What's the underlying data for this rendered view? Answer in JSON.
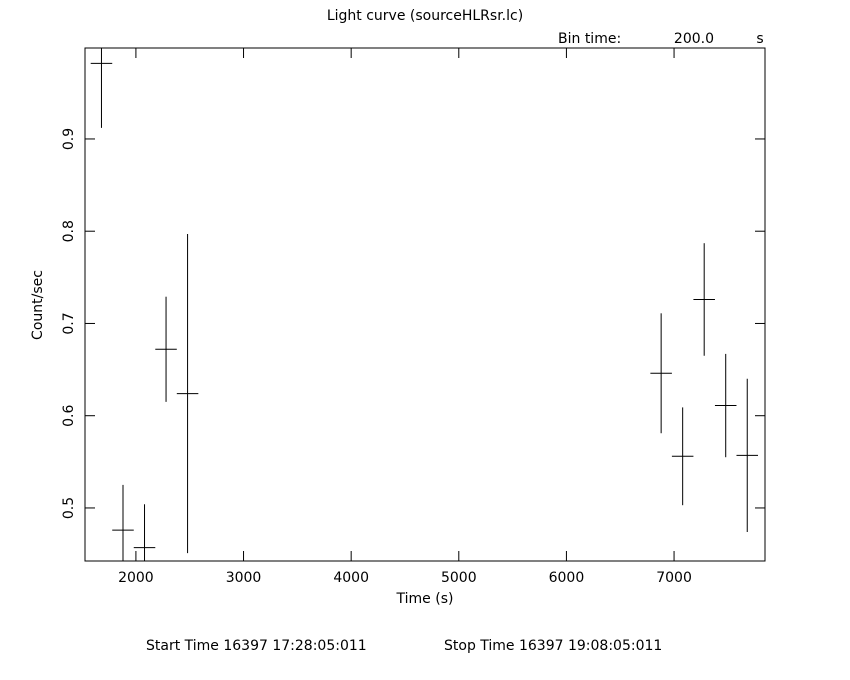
{
  "chart_data": {
    "type": "errorbar",
    "title": "Light curve (sourceHLRsr.lc)",
    "bin_time_label": "Bin time:",
    "bin_time": "200.0",
    "bin_time_unit": "s",
    "x_label": "Time (s)",
    "y_label": "Count/sec",
    "start_time": "Start Time 16397 17:28:05:011",
    "stop_time": "Stop Time 16397 19:08:05:011",
    "series": [
      {
        "color": "#000000",
        "x": [
          1680,
          1880,
          2080,
          2280,
          2480,
          6880,
          7080,
          7280,
          7480,
          7680
        ],
        "xerr": [
          100,
          100,
          100,
          100,
          100,
          100,
          100,
          100,
          100,
          100
        ],
        "values": [
          0.982,
          0.476,
          0.457,
          0.672,
          0.624,
          0.646,
          0.556,
          0.726,
          0.611,
          0.557
        ],
        "yerr": [
          0.07,
          0.049,
          0.047,
          0.057,
          0.173,
          0.065,
          0.053,
          0.061,
          0.056,
          0.083
        ]
      }
    ],
    "xlim": [
      1527,
      7845
    ],
    "ylim": [
      0.4425,
      0.9986
    ],
    "xticks": [
      2000,
      3000,
      4000,
      5000,
      6000,
      7000
    ],
    "yticks": [
      0.5,
      0.6,
      0.7,
      0.8,
      0.9
    ]
  }
}
